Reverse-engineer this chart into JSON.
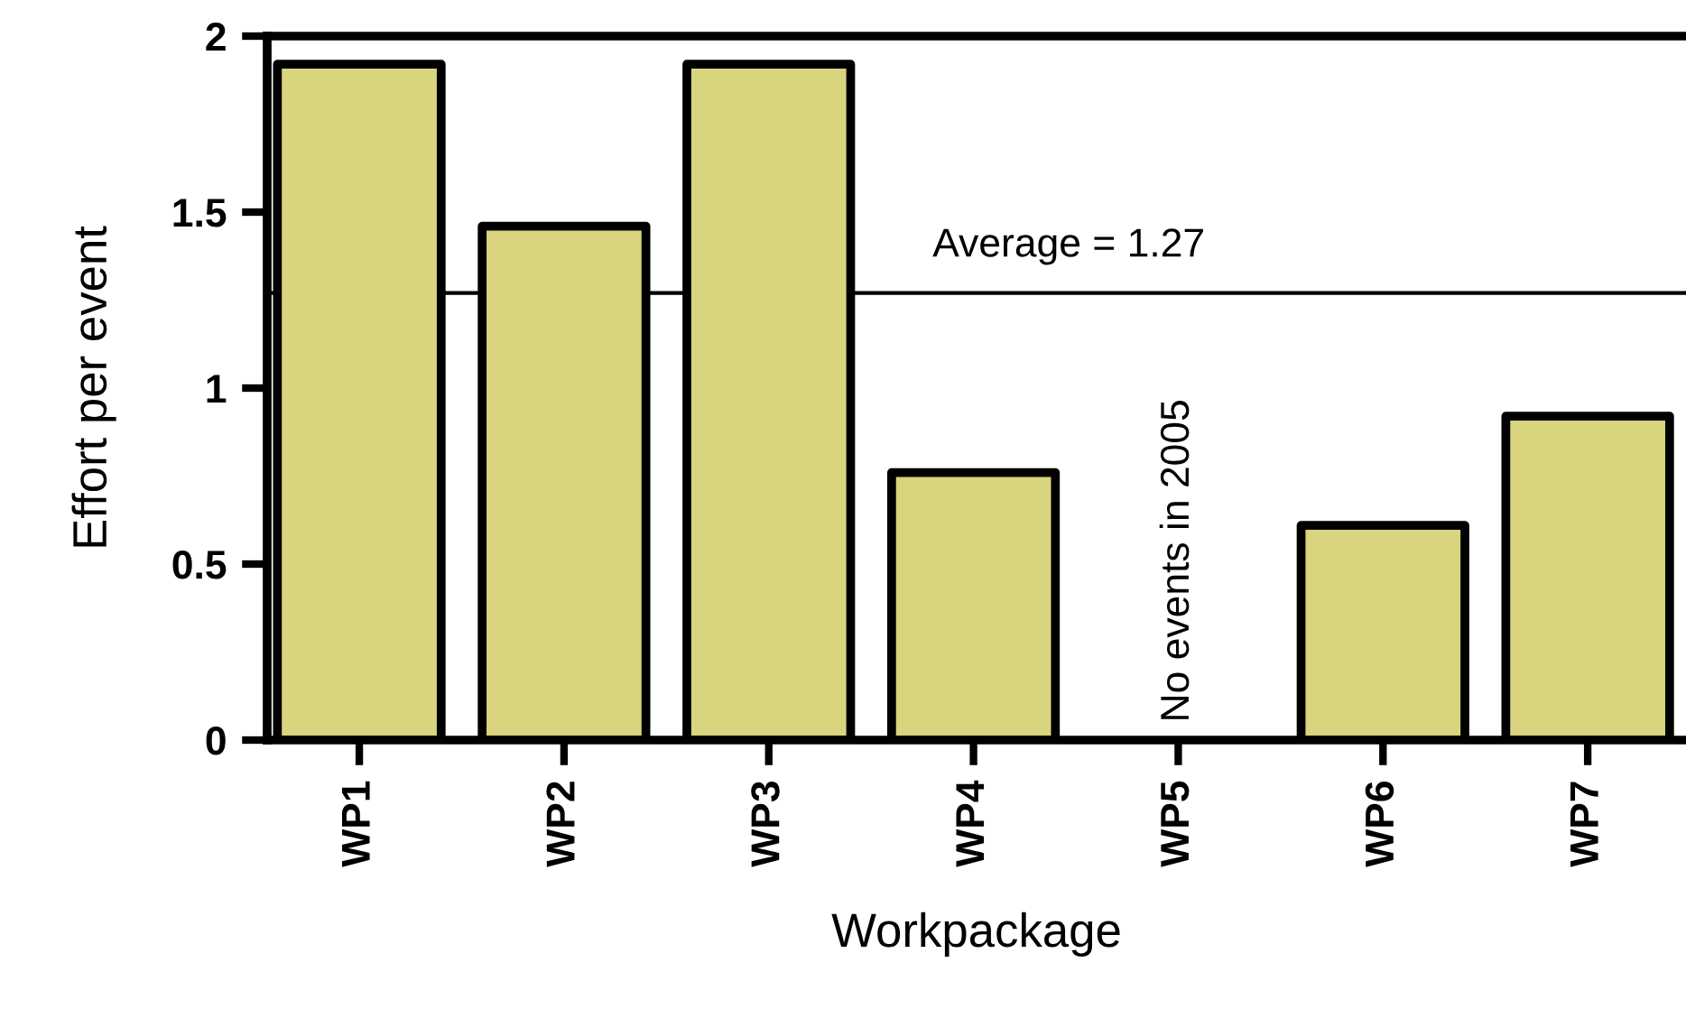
{
  "chart_data": {
    "type": "bar",
    "xlabel": "Workpackage",
    "ylabel": "Effort per event",
    "categories": [
      "WP1",
      "WP2",
      "WP3",
      "WP4",
      "WP5",
      "WP6",
      "WP7"
    ],
    "values": [
      1.92,
      1.46,
      1.92,
      0.76,
      null,
      0.61,
      0.92
    ],
    "color": "#d9d47e",
    "ylim": [
      0,
      2
    ],
    "yticks": [
      0,
      0.5,
      1,
      1.5,
      2
    ],
    "grid": false,
    "ref_lines": [
      {
        "axis": "y",
        "value": 1.27,
        "label": "Average = 1.27",
        "color": "#000000"
      }
    ],
    "annotations": [
      "No events in 2005"
    ]
  }
}
